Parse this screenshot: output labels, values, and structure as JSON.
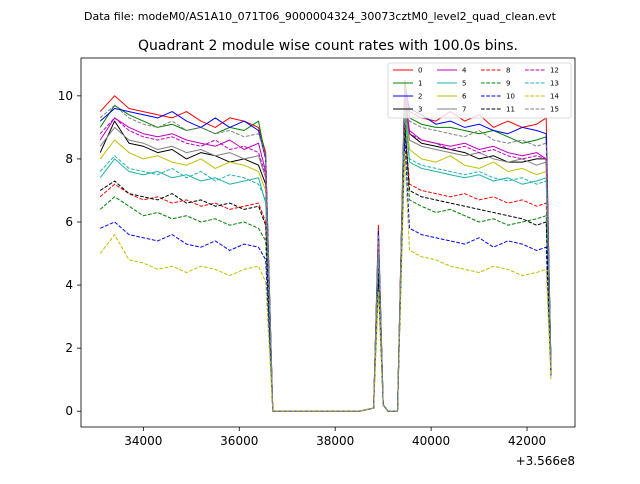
{
  "figure": {
    "suptitle": "Data file: modeM0/AS1A10_071T06_9000004324_30073cztM0_level2_quad_clean.evt"
  },
  "chart_data": {
    "type": "line",
    "title": "Quadrant 2 module wise count rates with 100.0s bins.",
    "xlabel": "",
    "ylabel": "",
    "x_offset_label": "+3.566e8",
    "xlim": [
      32700,
      43000
    ],
    "ylim": [
      -0.5,
      11.2
    ],
    "xticks": [
      34000,
      36000,
      38000,
      40000,
      42000
    ],
    "xtick_labels": [
      "34000",
      "36000",
      "38000",
      "40000",
      "42000"
    ],
    "yticks": [
      0,
      2,
      4,
      6,
      8,
      10
    ],
    "ytick_labels": [
      "0",
      "2",
      "4",
      "6",
      "8",
      "10"
    ],
    "grid": false,
    "legend_location": "upper right",
    "legend_columns": 4,
    "x": [
      33100,
      33400,
      33700,
      34000,
      34300,
      34600,
      34900,
      35200,
      35500,
      35800,
      36100,
      36400,
      36550,
      36700,
      37000,
      37500,
      38000,
      38500,
      38800,
      38900,
      39000,
      39100,
      39300,
      39450,
      39550,
      39800,
      40100,
      40400,
      40700,
      41000,
      41300,
      41600,
      41900,
      42200,
      42400,
      42500
    ],
    "series": [
      {
        "name": "0",
        "color": "#ff0000",
        "dash": "solid",
        "values": [
          9.5,
          10.0,
          9.6,
          9.5,
          9.4,
          9.3,
          9.5,
          9.2,
          9.0,
          9.3,
          9.2,
          9.0,
          8.2,
          0.0,
          0.0,
          0.0,
          0.0,
          0.0,
          0.1,
          5.9,
          0.2,
          0.0,
          0.0,
          10.5,
          9.5,
          9.3,
          9.2,
          9.5,
          9.2,
          9.4,
          9.0,
          9.2,
          9.0,
          9.1,
          9.3,
          1.3
        ]
      },
      {
        "name": "1",
        "color": "#008000",
        "dash": "solid",
        "values": [
          9.0,
          9.7,
          9.4,
          9.2,
          9.0,
          9.1,
          8.9,
          9.0,
          8.8,
          9.0,
          8.9,
          9.2,
          8.0,
          0.0,
          0.0,
          0.0,
          0.0,
          0.0,
          0.1,
          5.6,
          0.2,
          0.0,
          0.0,
          10.4,
          9.3,
          9.1,
          9.0,
          9.0,
          8.9,
          8.8,
          8.9,
          8.7,
          8.5,
          8.6,
          8.7,
          1.5
        ]
      },
      {
        "name": "2",
        "color": "#0000ff",
        "dash": "solid",
        "values": [
          9.2,
          9.6,
          9.5,
          9.4,
          9.3,
          9.5,
          9.2,
          9.0,
          9.3,
          9.0,
          9.2,
          8.9,
          8.0,
          0.0,
          0.0,
          0.0,
          0.0,
          0.0,
          0.1,
          5.7,
          0.2,
          0.0,
          0.0,
          10.2,
          9.6,
          9.4,
          9.1,
          9.2,
          9.0,
          9.1,
          8.9,
          8.8,
          9.0,
          8.9,
          8.8,
          1.4
        ]
      },
      {
        "name": "3",
        "color": "#000000",
        "dash": "solid",
        "values": [
          8.2,
          9.2,
          8.5,
          8.4,
          8.2,
          8.3,
          8.0,
          8.2,
          8.1,
          7.9,
          8.0,
          7.8,
          7.2,
          0.0,
          0.0,
          0.0,
          0.0,
          0.0,
          0.1,
          5.3,
          0.2,
          0.0,
          0.0,
          10.0,
          8.8,
          8.5,
          8.4,
          8.3,
          8.2,
          8.0,
          8.1,
          7.9,
          7.9,
          8.0,
          8.0,
          1.4
        ]
      },
      {
        "name": "4",
        "color": "#bf00bf",
        "dash": "solid",
        "values": [
          8.6,
          9.3,
          9.0,
          8.8,
          8.7,
          8.8,
          8.6,
          8.5,
          8.4,
          8.6,
          8.3,
          8.5,
          7.6,
          0.0,
          0.0,
          0.0,
          0.0,
          0.0,
          0.1,
          5.4,
          0.2,
          0.0,
          0.0,
          10.1,
          8.9,
          8.6,
          8.5,
          8.4,
          8.5,
          8.3,
          8.4,
          8.2,
          8.1,
          8.2,
          8.0,
          1.4
        ]
      },
      {
        "name": "5",
        "color": "#20b2aa",
        "dash": "solid",
        "values": [
          7.4,
          8.0,
          7.6,
          7.5,
          7.6,
          7.4,
          7.5,
          7.3,
          7.4,
          7.2,
          7.3,
          7.4,
          6.6,
          0.0,
          0.0,
          0.0,
          0.0,
          0.0,
          0.1,
          4.9,
          0.2,
          0.0,
          0.0,
          9.5,
          7.9,
          7.7,
          7.6,
          7.5,
          7.4,
          7.5,
          7.3,
          7.4,
          7.2,
          7.3,
          7.4,
          1.3
        ]
      },
      {
        "name": "6",
        "color": "#bfbf00",
        "dash": "solid",
        "values": [
          8.0,
          8.6,
          8.2,
          8.0,
          8.1,
          7.9,
          7.8,
          8.0,
          7.7,
          7.9,
          7.8,
          7.6,
          7.0,
          0.0,
          0.0,
          0.0,
          0.0,
          0.0,
          0.1,
          5.1,
          0.2,
          0.0,
          0.0,
          9.7,
          8.3,
          8.0,
          7.9,
          8.1,
          7.8,
          7.7,
          7.9,
          7.6,
          7.7,
          7.5,
          7.6,
          1.3
        ]
      },
      {
        "name": "7",
        "color": "#808080",
        "dash": "solid",
        "values": [
          8.4,
          9.0,
          8.6,
          8.5,
          8.3,
          8.4,
          8.2,
          8.3,
          8.1,
          8.2,
          8.0,
          8.1,
          7.4,
          0.0,
          0.0,
          0.0,
          0.0,
          0.0,
          0.1,
          5.2,
          0.2,
          0.0,
          0.0,
          9.8,
          8.6,
          8.4,
          8.3,
          8.2,
          8.1,
          8.2,
          8.0,
          7.9,
          8.0,
          7.8,
          7.9,
          1.3
        ]
      },
      {
        "name": "8",
        "color": "#ff0000",
        "dash": "dashed",
        "values": [
          6.8,
          7.2,
          6.9,
          6.7,
          6.8,
          6.6,
          6.7,
          6.5,
          6.6,
          6.4,
          6.5,
          6.6,
          6.0,
          0.0,
          0.0,
          0.0,
          0.0,
          0.0,
          0.1,
          4.6,
          0.2,
          0.0,
          0.0,
          9.2,
          7.2,
          7.0,
          6.9,
          6.8,
          6.9,
          6.7,
          6.8,
          6.6,
          6.7,
          6.5,
          6.6,
          1.2
        ]
      },
      {
        "name": "9",
        "color": "#008000",
        "dash": "dashed",
        "values": [
          6.4,
          6.8,
          6.5,
          6.2,
          6.3,
          6.1,
          6.2,
          6.0,
          6.1,
          5.9,
          6.0,
          5.8,
          5.4,
          0.0,
          0.0,
          0.0,
          0.0,
          0.0,
          0.1,
          4.4,
          0.2,
          0.0,
          0.0,
          9.0,
          6.7,
          6.5,
          6.3,
          6.4,
          6.2,
          6.0,
          6.1,
          5.9,
          6.0,
          6.1,
          6.2,
          1.2
        ]
      },
      {
        "name": "10",
        "color": "#0000ff",
        "dash": "dashed",
        "values": [
          5.8,
          6.0,
          5.6,
          5.5,
          5.4,
          5.6,
          5.3,
          5.2,
          5.4,
          5.1,
          5.3,
          5.2,
          4.8,
          0.0,
          0.0,
          0.0,
          0.0,
          0.0,
          0.1,
          4.1,
          0.2,
          0.0,
          0.0,
          8.6,
          5.8,
          5.6,
          5.5,
          5.4,
          5.3,
          5.5,
          5.2,
          5.4,
          5.3,
          5.1,
          5.2,
          1.1
        ]
      },
      {
        "name": "11",
        "color": "#000000",
        "dash": "dashed",
        "values": [
          7.0,
          7.3,
          6.9,
          6.8,
          6.7,
          6.9,
          6.6,
          6.7,
          6.5,
          6.6,
          6.4,
          6.5,
          5.9,
          0.0,
          0.0,
          0.0,
          0.0,
          0.0,
          0.1,
          4.5,
          0.2,
          0.0,
          0.0,
          9.1,
          7.0,
          6.8,
          6.7,
          6.6,
          6.5,
          6.4,
          6.3,
          6.2,
          6.1,
          5.9,
          6.0,
          1.2
        ]
      },
      {
        "name": "12",
        "color": "#bf00bf",
        "dash": "dashed",
        "values": [
          8.8,
          9.3,
          8.9,
          8.7,
          8.6,
          8.7,
          8.5,
          8.4,
          8.6,
          8.3,
          8.4,
          8.2,
          7.5,
          0.0,
          0.0,
          0.0,
          0.0,
          0.0,
          0.1,
          5.3,
          0.2,
          0.0,
          0.0,
          10.0,
          8.8,
          8.6,
          8.5,
          8.3,
          8.4,
          8.2,
          8.3,
          8.1,
          8.0,
          8.1,
          8.0,
          1.4
        ]
      },
      {
        "name": "13",
        "color": "#20b2aa",
        "dash": "dashed",
        "values": [
          7.6,
          8.1,
          7.7,
          7.6,
          7.5,
          7.7,
          7.4,
          7.6,
          7.3,
          7.5,
          7.4,
          7.2,
          6.7,
          0.0,
          0.0,
          0.0,
          0.0,
          0.0,
          0.1,
          5.0,
          0.2,
          0.0,
          0.0,
          9.6,
          8.0,
          7.8,
          7.7,
          7.6,
          7.5,
          7.6,
          7.4,
          7.3,
          7.4,
          7.2,
          7.3,
          1.3
        ]
      },
      {
        "name": "14",
        "color": "#bfbf00",
        "dash": "dashed",
        "values": [
          5.0,
          5.6,
          4.8,
          4.7,
          4.5,
          4.6,
          4.4,
          4.6,
          4.5,
          4.3,
          4.5,
          4.6,
          4.1,
          0.0,
          0.0,
          0.0,
          0.0,
          0.0,
          0.1,
          3.8,
          0.2,
          0.0,
          0.0,
          8.2,
          5.1,
          4.9,
          4.8,
          4.6,
          4.5,
          4.4,
          4.6,
          4.5,
          4.3,
          4.4,
          4.5,
          1.0
        ]
      },
      {
        "name": "15",
        "color": "#808080",
        "dash": "dashed",
        "values": [
          9.3,
          9.7,
          9.3,
          9.1,
          9.0,
          9.2,
          8.9,
          9.0,
          8.8,
          8.9,
          8.7,
          8.8,
          8.1,
          0.0,
          0.0,
          0.0,
          0.0,
          0.0,
          0.1,
          5.6,
          0.2,
          0.0,
          0.0,
          10.3,
          9.2,
          9.0,
          8.9,
          8.8,
          8.7,
          8.9,
          8.6,
          8.5,
          8.6,
          8.4,
          8.5,
          1.4
        ]
      }
    ]
  }
}
